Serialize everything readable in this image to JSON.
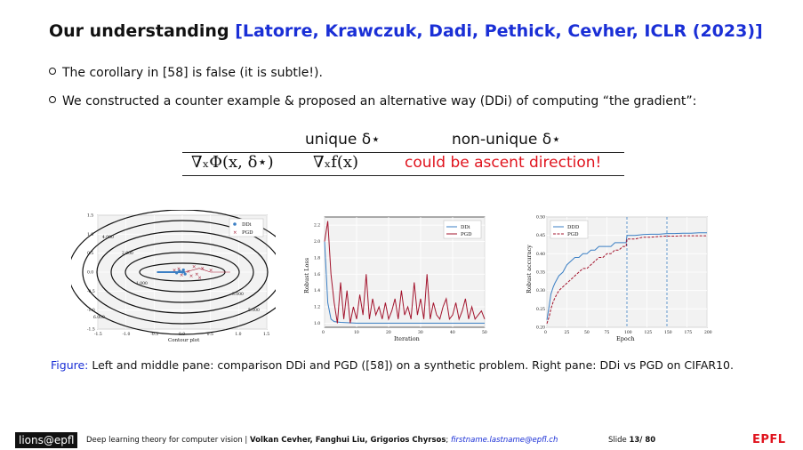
{
  "title": {
    "main": "Our understanding",
    "citation": "[Latorre, Krawczuk, Dadi, Pethick, Cevher, ICLR (2023)]"
  },
  "bullets": [
    "The corollary in [58] is false (it is subtle!).",
    "We constructed a counter example & proposed an alternative way (DDi) of computing “the gradient”:"
  ],
  "table": {
    "header_unique": "unique δ⋆",
    "header_nonunique": "non-unique δ⋆",
    "row_lhs": "∇ₓΦ(x, δ⋆)",
    "row_unique": "∇ₓf(x)",
    "row_nonunique": "could be ascent direction!"
  },
  "chart_data": [
    {
      "type": "contour",
      "xlabel": "Contour plot",
      "xlim": [
        -1.5,
        1.5
      ],
      "ylim": [
        -1.5,
        1.5
      ],
      "xticks": [
        "-1.5",
        "-1.0",
        "-0.5",
        "0.0",
        "0.5",
        "1.0",
        "1.5"
      ],
      "yticks": [
        "1.5",
        "1.0",
        "0.5",
        "0.0",
        "-0.5",
        "-1.0",
        "-1.5"
      ],
      "contour_labels": [
        "1.000",
        "2.000",
        "3.000",
        "4.000",
        "5.000",
        "6.000"
      ],
      "legend": [
        "DDi",
        "PGD"
      ]
    },
    {
      "type": "line",
      "xlabel": "Iteration",
      "ylabel": "Robust Loss",
      "xticks": [
        "0",
        "10",
        "20",
        "30",
        "40",
        "50"
      ],
      "yticks": [
        "2.2",
        "2.0",
        "1.8",
        "1.6",
        "1.4",
        "1.2",
        "1.0"
      ],
      "xlim": [
        0,
        50
      ],
      "ylim": [
        0.95,
        2.3
      ],
      "series": [
        {
          "name": "DDi",
          "color": "#3b7fc4",
          "x": [
            0,
            1,
            2,
            3,
            5,
            10,
            20,
            30,
            40,
            50
          ],
          "values": [
            2.0,
            1.25,
            1.05,
            1.02,
            1.01,
            1.0,
            1.0,
            1.0,
            1.0,
            1.0
          ]
        },
        {
          "name": "PGD",
          "color": "#a3142d",
          "x": [
            0,
            1,
            2,
            3,
            4,
            5,
            6,
            7,
            8,
            9,
            10,
            11,
            12,
            13,
            14,
            15,
            16,
            17,
            18,
            19,
            20,
            21,
            22,
            23,
            24,
            25,
            26,
            27,
            28,
            29,
            30,
            31,
            32,
            33,
            34,
            35,
            36,
            37,
            38,
            39,
            40,
            41,
            42,
            43,
            44,
            45,
            46,
            47,
            48,
            49,
            50
          ],
          "values": [
            2.0,
            2.25,
            1.6,
            1.25,
            1.0,
            1.5,
            1.05,
            1.4,
            1.0,
            1.2,
            1.05,
            1.35,
            1.1,
            1.6,
            1.05,
            1.3,
            1.1,
            1.2,
            1.05,
            1.25,
            1.05,
            1.15,
            1.3,
            1.05,
            1.4,
            1.1,
            1.2,
            1.05,
            1.5,
            1.1,
            1.3,
            1.05,
            1.6,
            1.05,
            1.25,
            1.1,
            1.05,
            1.2,
            1.3,
            1.05,
            1.1,
            1.25,
            1.05,
            1.15,
            1.3,
            1.05,
            1.2,
            1.05,
            1.1,
            1.15,
            1.05
          ]
        }
      ]
    },
    {
      "type": "line",
      "xlabel": "Epoch",
      "ylabel": "Robust accuracy",
      "xticks": [
        "0",
        "25",
        "50",
        "75",
        "100",
        "125",
        "150",
        "175",
        "200"
      ],
      "yticks": [
        "0.50",
        "0.45",
        "0.40",
        "0.35",
        "0.30",
        "0.25",
        "0.20"
      ],
      "xlim": [
        0,
        200
      ],
      "ylim": [
        0.2,
        0.5
      ],
      "vlines": [
        100,
        150
      ],
      "series": [
        {
          "name": "DDD",
          "color": "#3b7fc4",
          "style": "solid",
          "x": [
            0,
            3,
            5,
            8,
            10,
            15,
            20,
            25,
            30,
            35,
            40,
            45,
            50,
            55,
            60,
            65,
            70,
            75,
            80,
            85,
            90,
            95,
            99,
            100,
            110,
            120,
            130,
            140,
            150,
            160,
            170,
            180,
            190,
            200
          ],
          "values": [
            0.22,
            0.26,
            0.29,
            0.31,
            0.32,
            0.34,
            0.35,
            0.37,
            0.38,
            0.39,
            0.39,
            0.4,
            0.4,
            0.41,
            0.41,
            0.42,
            0.42,
            0.42,
            0.42,
            0.43,
            0.43,
            0.43,
            0.43,
            0.45,
            0.45,
            0.452,
            0.453,
            0.453,
            0.455,
            0.455,
            0.456,
            0.456,
            0.457,
            0.457
          ]
        },
        {
          "name": "PGD",
          "color": "#a3142d",
          "style": "dashed",
          "x": [
            0,
            3,
            5,
            8,
            10,
            15,
            20,
            25,
            30,
            35,
            40,
            45,
            50,
            55,
            60,
            65,
            70,
            75,
            80,
            85,
            90,
            95,
            99,
            100,
            110,
            120,
            130,
            140,
            150,
            160,
            170,
            180,
            190,
            200
          ],
          "values": [
            0.21,
            0.23,
            0.25,
            0.27,
            0.28,
            0.3,
            0.31,
            0.32,
            0.33,
            0.34,
            0.35,
            0.36,
            0.36,
            0.37,
            0.38,
            0.39,
            0.39,
            0.4,
            0.4,
            0.41,
            0.41,
            0.42,
            0.42,
            0.44,
            0.44,
            0.445,
            0.445,
            0.447,
            0.448,
            0.448,
            0.449,
            0.449,
            0.449,
            0.449
          ]
        }
      ]
    }
  ],
  "caption": {
    "label": "Figure:",
    "text": "Left and middle pane: comparison DDi and PGD ([58]) on a synthetic problem. Right pane: DDi vs PGD on CIFAR10."
  },
  "footer": {
    "logo": "lions@epfl",
    "text_plain": "Deep learning theory for computer vision | ",
    "authors": "Volkan Cevher, Fanghui Liu, Grigorios Chyrsos",
    "sep": "; ",
    "email": "firstname.lastname@epfl.ch",
    "slide_label": "Slide ",
    "slide_current": "13",
    "slide_total": "/ 80",
    "brand": "EPFL"
  },
  "colors": {
    "citation": "#1a2fd6",
    "alert": "#e0141e",
    "ddi": "#3b7fc4",
    "pgd": "#a3142d"
  }
}
